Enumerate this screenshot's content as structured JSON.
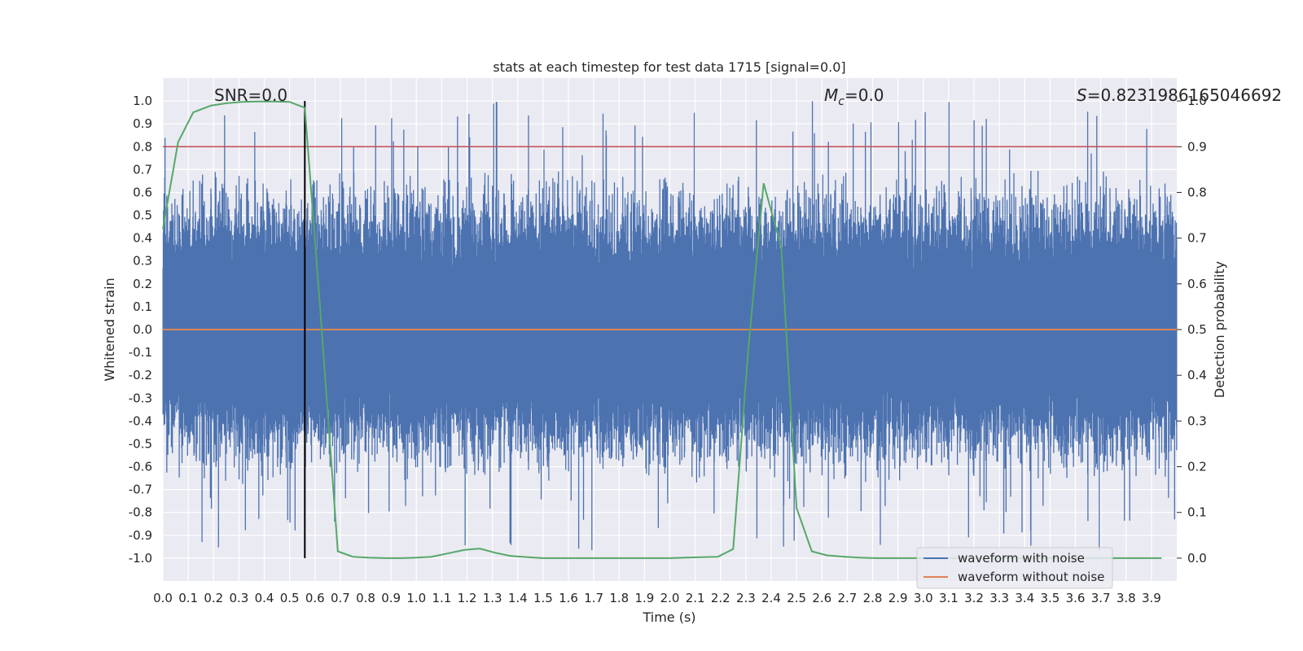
{
  "chart_data": {
    "type": "line",
    "title": "stats at each timestep for test data 1715 [signal=0.0]",
    "xlabel": "Time (s)",
    "ylabel": "Whitened strain",
    "ylabel_right": "Detection probability",
    "xlim": [
      0.0,
      4.0
    ],
    "ylim": [
      -1.1,
      1.1
    ],
    "ylim_right": [
      -0.05,
      1.05
    ],
    "x_ticks": [
      "0.0",
      "0.1",
      "0.2",
      "0.3",
      "0.4",
      "0.5",
      "0.6",
      "0.7",
      "0.8",
      "0.9",
      "1.0",
      "1.1",
      "1.2",
      "1.3",
      "1.4",
      "1.5",
      "1.6",
      "1.7",
      "1.8",
      "1.9",
      "2.0",
      "2.1",
      "2.2",
      "2.3",
      "2.4",
      "2.5",
      "2.6",
      "2.7",
      "2.8",
      "2.9",
      "3.0",
      "3.1",
      "3.2",
      "3.3",
      "3.4",
      "3.5",
      "3.6",
      "3.7",
      "3.8",
      "3.9"
    ],
    "y_ticks": [
      "1.0",
      "0.9",
      "0.8",
      "0.7",
      "0.6",
      "0.5",
      "0.4",
      "0.3",
      "0.2",
      "0.1",
      "0.0",
      "-0.1",
      "-0.2",
      "-0.3",
      "-0.4",
      "-0.5",
      "-0.6",
      "-0.7",
      "-0.8",
      "-0.9",
      "-1.0"
    ],
    "y_ticks_right": [
      "1.0",
      "0.9",
      "0.8",
      "0.7",
      "0.6",
      "0.5",
      "0.4",
      "0.3",
      "0.2",
      "0.1",
      "0.0"
    ],
    "grid": true,
    "annotations": {
      "snr": "SNR=0.0",
      "mc_symbol": "M",
      "mc_sub": "c",
      "mc_value": "=0.0",
      "s_symbol": "S",
      "s_value": "=0.8231986165046692"
    },
    "series": [
      {
        "name": "waveform with noise",
        "color": "#4c72b0",
        "axis": "left",
        "kind": "noise",
        "approx_range": [
          -0.98,
          1.0
        ]
      },
      {
        "name": "waveform without noise",
        "color": "#dd8452",
        "axis": "left",
        "constant": 0.0
      },
      {
        "name": "detection probability",
        "color": "#55a868",
        "axis": "right",
        "x": [
          0.0,
          0.06,
          0.12,
          0.19,
          0.25,
          0.31,
          0.37,
          0.44,
          0.5,
          0.56,
          0.62,
          0.69,
          0.75,
          0.81,
          0.88,
          0.94,
          1.0,
          1.06,
          1.12,
          1.19,
          1.25,
          1.31,
          1.37,
          1.44,
          1.5,
          1.56,
          1.62,
          1.69,
          1.75,
          1.81,
          1.88,
          1.94,
          2.0,
          2.06,
          2.12,
          2.19,
          2.25,
          2.31,
          2.37,
          2.44,
          2.5,
          2.56,
          2.62,
          2.69,
          2.75,
          2.81,
          2.88,
          2.94,
          3.0,
          3.06,
          3.12,
          3.19,
          3.25,
          3.31,
          3.37,
          3.44,
          3.5,
          3.56,
          3.62,
          3.69,
          3.75,
          3.81,
          3.88,
          3.94
        ],
        "y": [
          0.72,
          0.91,
          0.975,
          0.99,
          0.995,
          0.998,
          0.999,
          0.999,
          0.998,
          0.985,
          0.55,
          0.015,
          0.003,
          0.001,
          0.0,
          0.0,
          0.001,
          0.003,
          0.01,
          0.018,
          0.021,
          0.012,
          0.005,
          0.002,
          0.0,
          0.0,
          0.0,
          0.0,
          0.0,
          0.0,
          0.0,
          0.0,
          0.0,
          0.001,
          0.002,
          0.003,
          0.02,
          0.46,
          0.82,
          0.68,
          0.11,
          0.015,
          0.006,
          0.003,
          0.001,
          0.0,
          0.0,
          0.0,
          0.0,
          0.0,
          0.0,
          0.0,
          0.0,
          0.0,
          0.0,
          0.0,
          0.0,
          0.0,
          0.0,
          0.0,
          0.0,
          0.0,
          0.0,
          0.0
        ]
      }
    ],
    "reference_lines": [
      {
        "name": "detection threshold",
        "axis": "left",
        "y": 0.8,
        "color": "#c44e52"
      },
      {
        "name": "marker",
        "axis": "left",
        "x": 0.56,
        "y_from": -1.0,
        "y_to": 1.0,
        "color": "#000000"
      }
    ],
    "legend": {
      "position": "lower-right",
      "entries": [
        "waveform with noise",
        "waveform without noise"
      ]
    }
  }
}
